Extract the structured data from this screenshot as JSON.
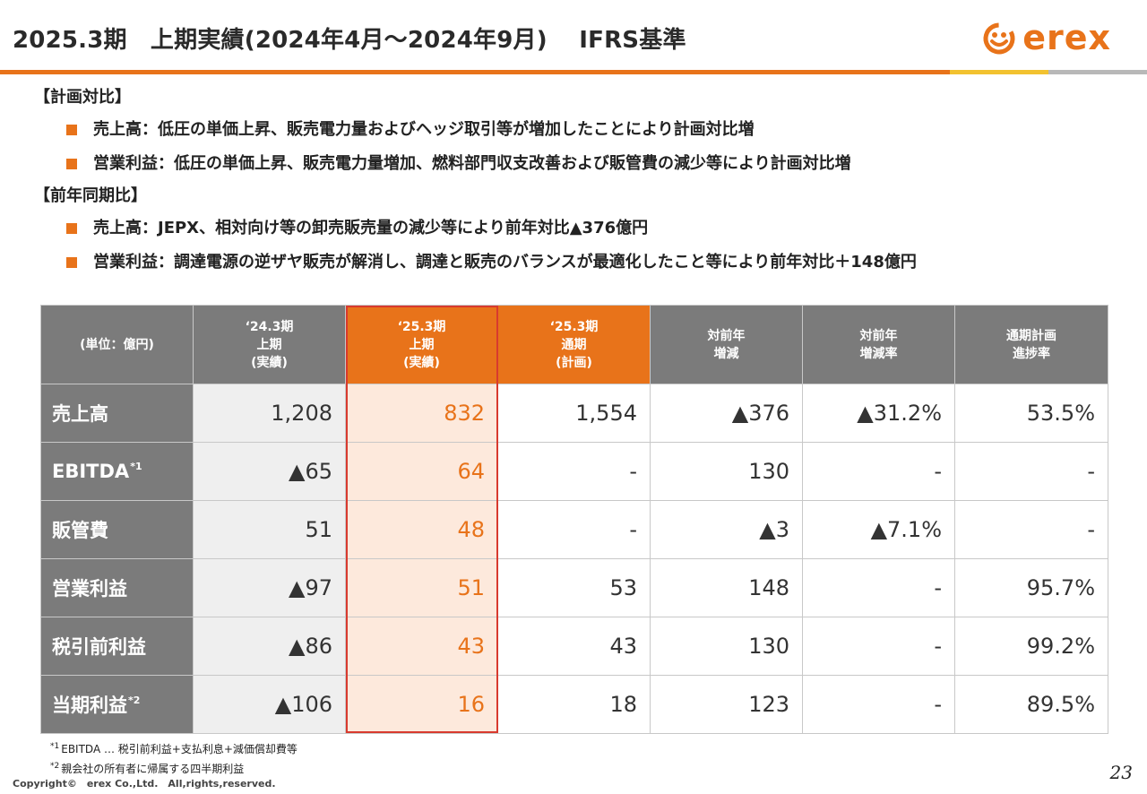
{
  "header": {
    "title": "2025.3期　上期実績(2024年4月～2024年9月)　 IFRS基準",
    "logo_text": "erex",
    "accent_color": "#e8731a"
  },
  "sections": [
    {
      "heading": "【計画対比】",
      "bullets": [
        "売上高：低圧の単価上昇、販売電力量およびヘッジ取引等が増加したことにより計画対比増",
        "営業利益：低圧の単価上昇、販売電力量増加、燃料部門収支改善および販管費の減少等により計画対比増"
      ]
    },
    {
      "heading": "【前年同期比】",
      "bullets": [
        "売上高：JEPX、相対向け等の卸売販売量の減少等により前年対比▲376億円",
        "営業利益：調達電源の逆ザヤ販売が解消し、調達と販売のバランスが最適化したこと等により前年対比＋148億円"
      ]
    }
  ],
  "table": {
    "headers": [
      [
        "(単位：億円)"
      ],
      [
        "‘24.3期",
        "上期",
        "(実績)"
      ],
      [
        "‘25.3期",
        "上期",
        "(実績)"
      ],
      [
        "‘25.3期",
        "通期",
        "(計画)"
      ],
      [
        "対前年",
        "増減"
      ],
      [
        "対前年",
        "増減率"
      ],
      [
        "通期計画",
        "進捗率"
      ]
    ],
    "rows": [
      {
        "label": "売上高",
        "sup": "",
        "values": [
          "1,208",
          "832",
          "1,554",
          "▲376",
          "▲31.2%",
          "53.5%"
        ]
      },
      {
        "label": "EBITDA",
        "sup": "*1",
        "values": [
          "▲65",
          "64",
          "-",
          "130",
          "-",
          "-"
        ]
      },
      {
        "label": "販管費",
        "sup": "",
        "values": [
          "51",
          "48",
          "-",
          "▲3",
          "▲7.1%",
          "-"
        ]
      },
      {
        "label": "営業利益",
        "sup": "",
        "values": [
          "▲97",
          "51",
          "53",
          "148",
          "-",
          "95.7%"
        ]
      },
      {
        "label": "税引前利益",
        "sup": "",
        "values": [
          "▲86",
          "43",
          "43",
          "130",
          "-",
          "99.2%"
        ]
      },
      {
        "label": "当期利益",
        "sup": "*2",
        "values": [
          "▲106",
          "16",
          "18",
          "123",
          "-",
          "89.5%"
        ]
      }
    ]
  },
  "notes": [
    {
      "mark": "*1",
      "text": "EBITDA … 税引前利益+支払利息+減価償却費等"
    },
    {
      "mark": "*2",
      "text": "親会社の所有者に帰属する四半期利益"
    }
  ],
  "footer": {
    "copyright": "Copyright©　erex Co.,Ltd.　All,rights,reserved.",
    "page_number": "23"
  }
}
